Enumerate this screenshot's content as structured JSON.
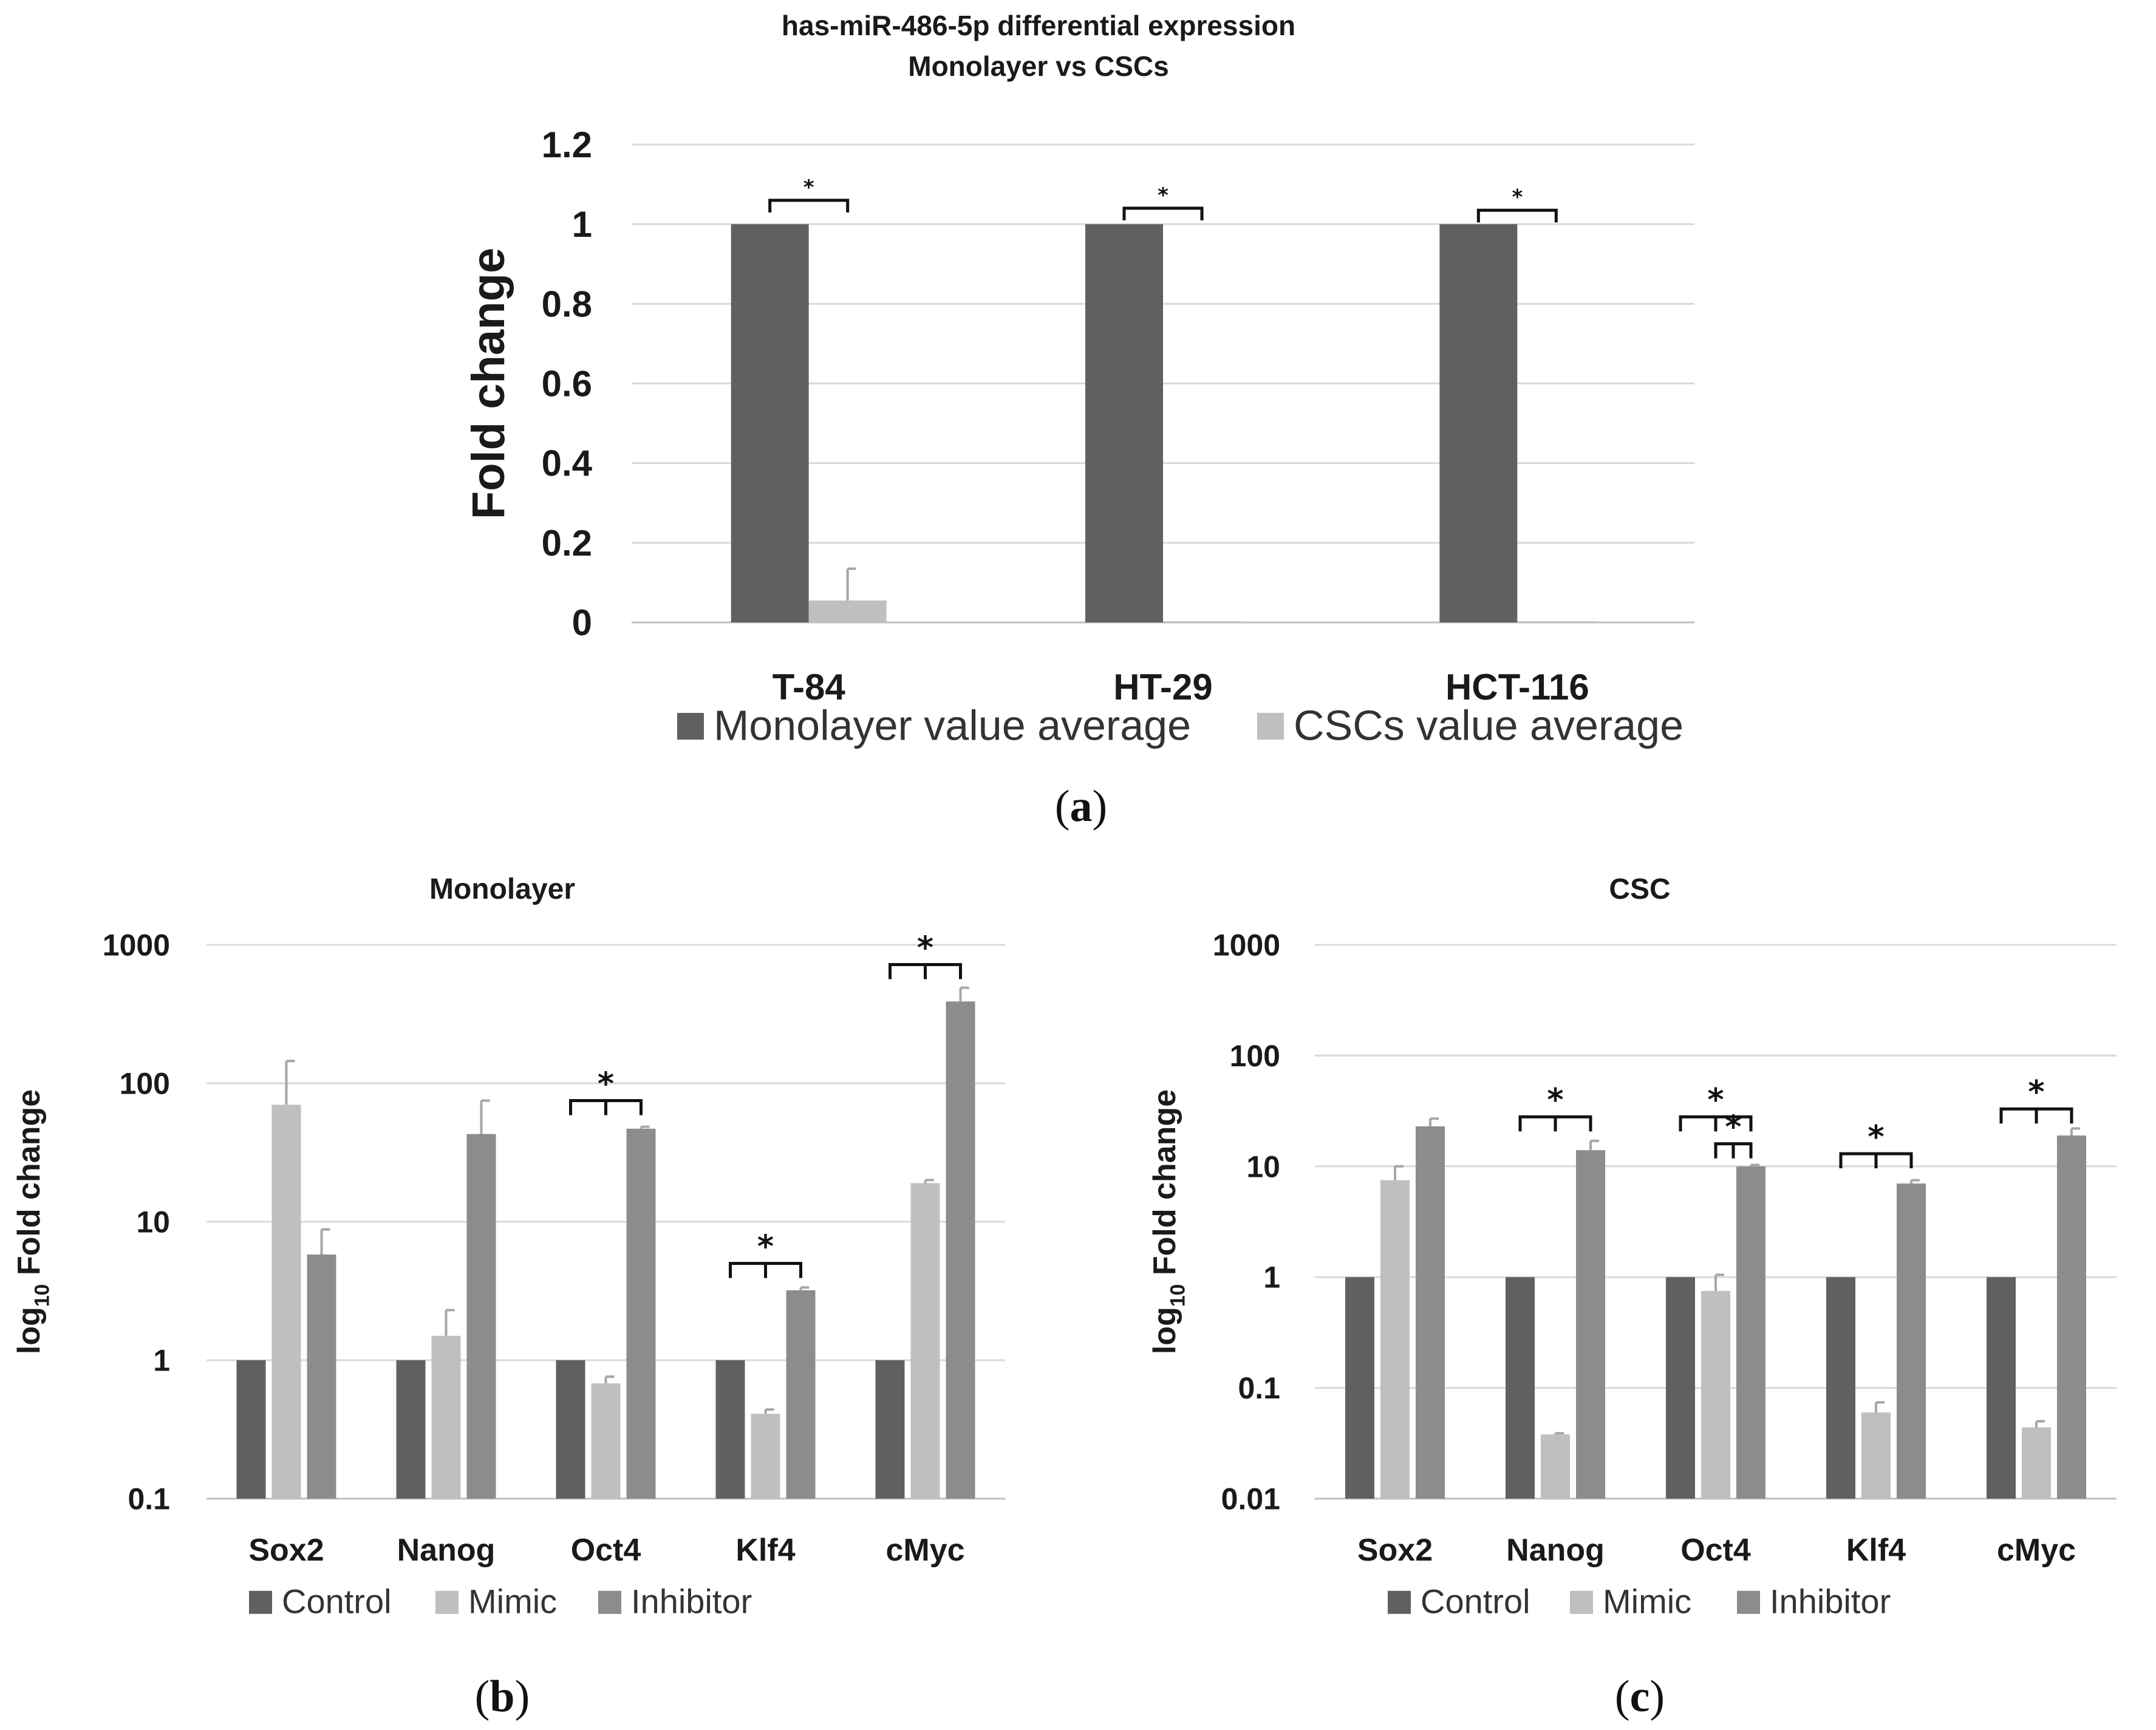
{
  "chart_data": [
    {
      "id": "a",
      "type": "bar",
      "title": "has-miR-486-5p differential expression",
      "subtitle": "Monolayer vs CSCs",
      "ylabel": "Fold change",
      "xlabel": "",
      "categories": [
        "T-84",
        "HT-29",
        "HCT-116"
      ],
      "series": [
        {
          "name": "Monolayer value average",
          "color": "#606060",
          "values": [
            1,
            1,
            1
          ],
          "errors": [
            0,
            0,
            0
          ]
        },
        {
          "name": "CSCs value average",
          "color": "#bfbfbf",
          "values": [
            0.055,
            0,
            0.003
          ],
          "errors": [
            0.08,
            0,
            0
          ]
        }
      ],
      "yscale": "linear",
      "ylim": [
        0,
        1.2
      ],
      "yticks": [
        "0",
        "0.2",
        "0.4",
        "0.6",
        "0.8",
        "1",
        "1.2"
      ],
      "grid": true,
      "legend": "bottom",
      "significance": [
        {
          "category": "T-84",
          "from_series": 0,
          "to_series": 1,
          "label": "*",
          "y": 1.06
        },
        {
          "category": "HT-29",
          "from_series": 0,
          "to_series": 1,
          "label": "*",
          "y": 1.04
        },
        {
          "category": "HCT-116",
          "from_series": 0,
          "to_series": 1,
          "label": "*",
          "y": 1.035
        }
      ],
      "caption": "(a)"
    },
    {
      "id": "b",
      "type": "bar",
      "title": "Monolayer",
      "ylabel_prefix": "log",
      "ylabel_sub": "10",
      "ylabel_suffix": " Fold change",
      "categories": [
        "Sox2",
        "Nanog",
        "Oct4",
        "Klf4",
        "cMyc"
      ],
      "series": [
        {
          "name": "Control",
          "color": "#606060",
          "values": [
            1,
            1,
            1,
            1,
            1
          ],
          "errors": [
            0,
            0,
            0,
            0,
            0
          ]
        },
        {
          "name": "Mimic",
          "color": "#bfbfbf",
          "values": [
            70,
            1.5,
            0.68,
            0.41,
            19
          ],
          "errors": [
            75,
            0.8,
            0.08,
            0.03,
            1
          ]
        },
        {
          "name": "Inhibitor",
          "color": "#8c8c8c",
          "values": [
            5.8,
            43,
            47,
            3.2,
            390
          ],
          "errors": [
            3,
            32,
            1.5,
            0.15,
            100
          ]
        }
      ],
      "yscale": "log",
      "ylim": [
        0.1,
        1000
      ],
      "yticks": [
        "0.1",
        "1",
        "10",
        "100",
        "1000"
      ],
      "grid": true,
      "legend": "bottom",
      "significance": [
        {
          "category": "Oct4",
          "from_series": 0,
          "to_series": 2,
          "label": "*",
          "y": 75
        },
        {
          "category": "Klf4",
          "from_series": 0,
          "to_series": 2,
          "label": "*",
          "y": 5
        },
        {
          "category": "cMyc",
          "from_series": 0,
          "to_series": 2,
          "label": "*",
          "y": 720
        }
      ],
      "caption": "(b)"
    },
    {
      "id": "c",
      "type": "bar",
      "title": "CSC",
      "ylabel_prefix": "log",
      "ylabel_sub": "10",
      "ylabel_suffix": " Fold change",
      "categories": [
        "Sox2",
        "Nanog",
        "Oct4",
        "Klf4",
        "cMyc"
      ],
      "series": [
        {
          "name": "Control",
          "color": "#606060",
          "values": [
            1,
            1,
            1,
            1,
            1
          ],
          "errors": [
            0,
            0,
            0,
            0,
            0
          ]
        },
        {
          "name": "Mimic",
          "color": "#bfbfbf",
          "values": [
            7.5,
            0.038,
            0.75,
            0.06,
            0.044
          ],
          "errors": [
            2.5,
            0.001,
            0.3,
            0.014,
            0.006
          ]
        },
        {
          "name": "Inhibitor",
          "color": "#8c8c8c",
          "values": [
            23,
            14,
            10,
            7,
            19
          ],
          "errors": [
            4,
            3,
            0.3,
            0.5,
            3
          ]
        }
      ],
      "yscale": "log",
      "ylim": [
        0.01,
        1000
      ],
      "yticks": [
        "0.01",
        "0.1",
        "1",
        "10",
        "100",
        "1000"
      ],
      "grid": true,
      "legend": "bottom",
      "significance": [
        {
          "category": "Nanog",
          "from_series": 0,
          "to_series": 2,
          "label": "*",
          "y": 28
        },
        {
          "category": "Oct4",
          "from_series": 0,
          "to_series": 2,
          "label": "*",
          "y": 28
        },
        {
          "category": "Oct4",
          "from_series": 1,
          "to_series": 2,
          "label": "*",
          "y": 16
        },
        {
          "category": "Klf4",
          "from_series": 0,
          "to_series": 2,
          "label": "*",
          "y": 13
        },
        {
          "category": "cMyc",
          "from_series": 0,
          "to_series": 2,
          "label": "*",
          "y": 33
        }
      ],
      "caption": "(c)"
    }
  ]
}
